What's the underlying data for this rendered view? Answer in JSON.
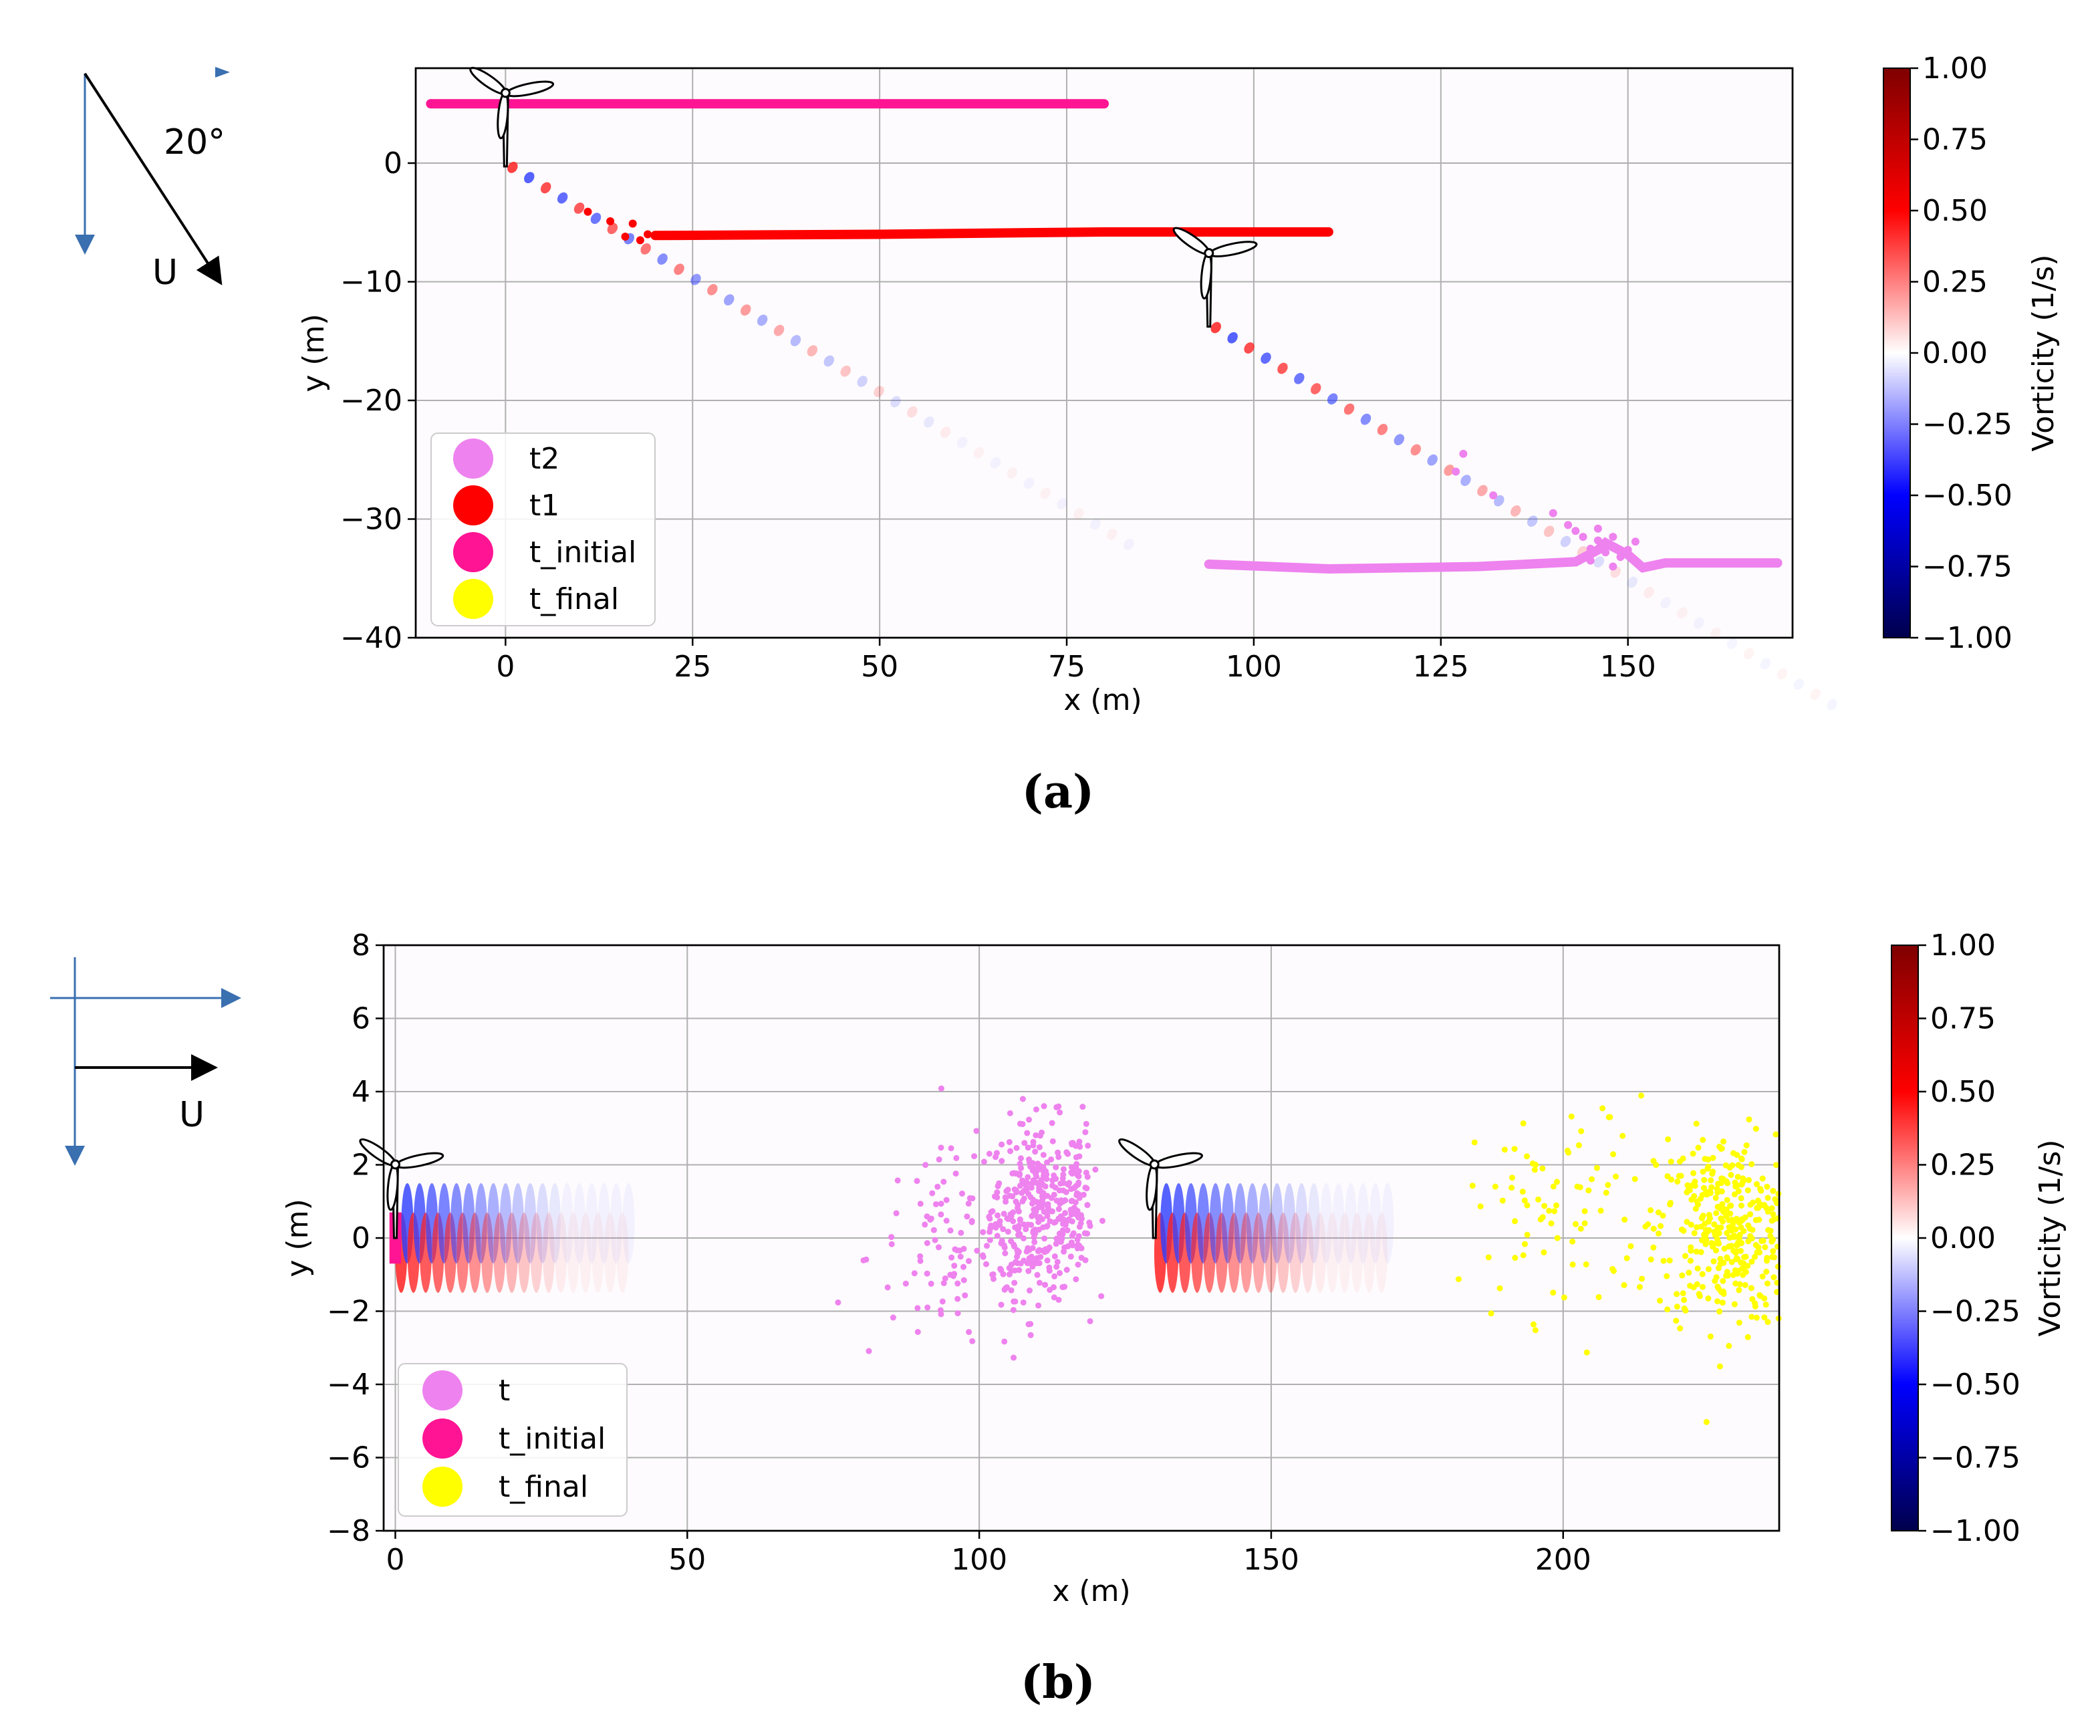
{
  "chart_data": [
    {
      "panel": "(a)",
      "type": "scatter",
      "xlabel": "x (m)",
      "ylabel": "y (m)",
      "xlim": [
        -12,
        172
      ],
      "ylim": [
        -40,
        8
      ],
      "xticks": [
        0,
        25,
        50,
        75,
        100,
        125,
        150
      ],
      "yticks": [
        0,
        -10,
        -20,
        -30,
        -40
      ],
      "tick_labels_x": [
        "0",
        "25",
        "50",
        "75",
        "100",
        "125",
        "150"
      ],
      "tick_labels_y": [
        "0",
        "−10",
        "−20",
        "−30",
        "−40"
      ],
      "grid": true,
      "legend_position": "lower-left",
      "legend": [
        {
          "label": "t2",
          "color": "#ee82ee"
        },
        {
          "label": "t1",
          "color": "#ff0000"
        },
        {
          "label": "t_initial",
          "color": "#ff1493"
        },
        {
          "label": "t_final",
          "color": "#ffff00"
        }
      ],
      "series": [
        {
          "name": "t_initial",
          "color": "#ff1493",
          "shape": "line",
          "x": [
            -10,
            80
          ],
          "y": [
            5,
            5
          ]
        },
        {
          "name": "t1",
          "color": "#ff0000",
          "shape": "line",
          "x": [
            20,
            50,
            80,
            110
          ],
          "y": [
            -6.1,
            -6.0,
            -5.8,
            -5.8
          ],
          "scatter_x": [
            16,
            17,
            18,
            19,
            14,
            11
          ],
          "scatter_y": [
            -6.2,
            -5.1,
            -6.5,
            -6.0,
            -4.9,
            -4.1
          ]
        },
        {
          "name": "t2",
          "color": "#ee82ee",
          "shape": "line",
          "x": [
            94,
            110,
            130,
            143,
            146,
            147,
            150,
            152,
            155,
            170
          ],
          "y": [
            -33.8,
            -34.2,
            -34.0,
            -33.6,
            -32.6,
            -32.0,
            -33.0,
            -34.1,
            -33.7,
            -33.7
          ],
          "scatter_x": [
            128,
            127,
            132,
            140,
            142,
            143,
            144,
            145,
            146,
            147,
            148,
            149,
            150,
            151,
            145,
            148,
            146
          ],
          "scatter_y": [
            -24.5,
            -26,
            -28,
            -29.5,
            -30.5,
            -31,
            -31.5,
            -32.5,
            -31.8,
            -32.8,
            -31.5,
            -33.2,
            -32.6,
            -31.9,
            -33.5,
            -34,
            -30.8
          ]
        }
      ],
      "turbines": [
        {
          "x": 0,
          "y": 0,
          "yaw_deg": 20
        },
        {
          "x": 94,
          "y": -13.5,
          "yaw_deg": 20
        }
      ],
      "inset": {
        "label": "U",
        "angle_label": "20°"
      },
      "colorbar": {
        "label": "Vorticity (1/s)",
        "ticks": [
          "1.00",
          "0.75",
          "0.50",
          "0.25",
          "0.00",
          "−0.25",
          "−0.50",
          "−0.75",
          "−1.00"
        ],
        "range": [
          -1,
          1
        ],
        "cmap": "seismic"
      }
    },
    {
      "panel": "(b)",
      "type": "scatter",
      "xlabel": "x (m)",
      "ylabel": "y (m)",
      "xlim": [
        -2,
        237
      ],
      "ylim": [
        -8,
        8
      ],
      "xticks": [
        0,
        50,
        100,
        150,
        200
      ],
      "yticks": [
        8,
        6,
        4,
        2,
        0,
        -2,
        -4,
        -6,
        -8
      ],
      "tick_labels_x": [
        "0",
        "50",
        "100",
        "150",
        "200"
      ],
      "tick_labels_y": [
        "8",
        "6",
        "4",
        "2",
        "0",
        "−2",
        "−4",
        "−6",
        "−8"
      ],
      "grid": true,
      "legend_position": "lower-left",
      "legend": [
        {
          "label": "t",
          "color": "#ee82ee"
        },
        {
          "label": "t_initial",
          "color": "#ff1493"
        },
        {
          "label": "t_final",
          "color": "#ffff00"
        }
      ],
      "series": [
        {
          "name": "t_initial",
          "color": "#ff1493",
          "shape": "band",
          "x": [
            -1,
            1
          ],
          "y": [
            -0.7,
            0.7
          ]
        },
        {
          "name": "t",
          "color": "#ee82ee",
          "shape": "cloud",
          "clusters": [
            {
              "cx": 110,
              "cy": 0.8,
              "sx": 4,
              "sy": 1.2,
              "n": 320
            },
            {
              "cx": 97,
              "cy": -0.5,
              "sx": 8,
              "sy": 1.4,
              "n": 120
            },
            {
              "cx": 117,
              "cy": 1.2,
              "sx": 1.2,
              "sy": 1.0,
              "n": 60
            }
          ]
        },
        {
          "name": "t_final",
          "color": "#ffff00",
          "shape": "cloud",
          "clusters": [
            {
              "cx": 228,
              "cy": 0.2,
              "sx": 6,
              "sy": 1.3,
              "n": 380
            },
            {
              "cx": 200,
              "cy": 0.8,
              "sx": 8,
              "sy": 1.5,
              "n": 80
            }
          ]
        }
      ],
      "turbines": [
        {
          "x": 0,
          "y": 0,
          "yaw_deg": 0
        },
        {
          "x": 130,
          "y": 0,
          "yaw_deg": 0
        }
      ],
      "inset": {
        "label": "U"
      },
      "colorbar": {
        "label": "Vorticity (1/s)",
        "ticks": [
          "1.00",
          "0.75",
          "0.50",
          "0.25",
          "0.00",
          "−0.25",
          "−0.50",
          "−0.75",
          "−1.00"
        ],
        "range": [
          -1,
          1
        ],
        "cmap": "seismic"
      }
    }
  ]
}
